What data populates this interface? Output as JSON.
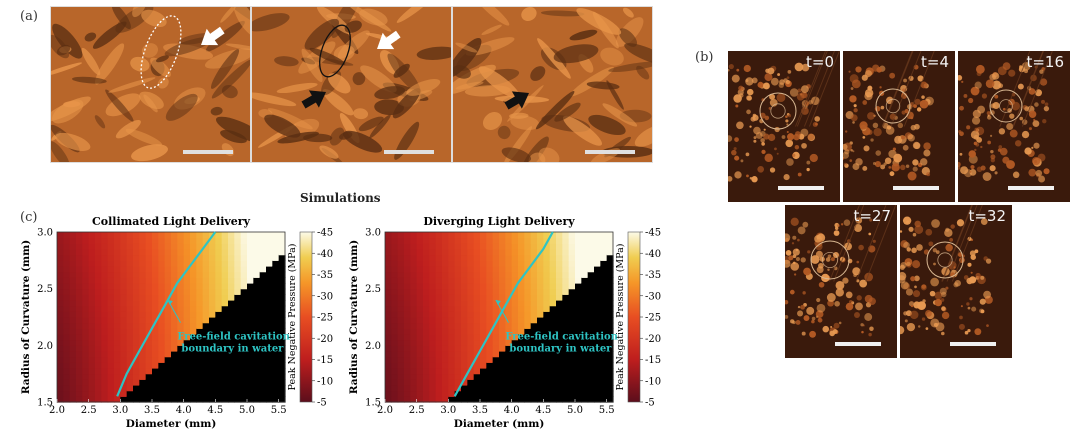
{
  "panel_labels": {
    "a": "(a)",
    "b": "(b)",
    "c": "(c)"
  },
  "section_title": "Simulations",
  "panel_b_times": [
    "t=0",
    "t=4",
    "t=16",
    "t=27",
    "t=32"
  ],
  "colors": {
    "tissue_dark": "#5a2e12",
    "tissue_mid": "#b8662a",
    "tissue_light": "#e8954a",
    "boundary": "#2ec4c4",
    "b_bg": "#3a1a0c"
  },
  "heatmap_common": {
    "ylabel": "Radius of Curvature (mm)",
    "xlabel": "Diameter (mm)",
    "xticks": [
      "2.0",
      "2.5",
      "3.0",
      "3.5",
      "4.0",
      "4.5",
      "5.0",
      "5.5"
    ],
    "yticks": [
      "1.5",
      "2.0",
      "2.5",
      "3.0"
    ],
    "colorbar_label": "Peak Negative Pressure (MPa)",
    "colorbar_ticks": [
      "-5",
      "-10",
      "-15",
      "-20",
      "-25",
      "-30",
      "-35",
      "-40",
      "-45"
    ],
    "annotation_line1": "Free-field cavitation",
    "annotation_line2": "boundary in water"
  },
  "chart_data": [
    {
      "type": "heatmap",
      "title": "Collimated Light Delivery",
      "xlabel": "Diameter (mm)",
      "ylabel": "Radius of Curvature (mm)",
      "xlim": [
        2.0,
        5.6
      ],
      "ylim": [
        1.5,
        3.0
      ],
      "colorbar": {
        "label": "Peak Negative Pressure (MPa)",
        "range": [
          -5,
          -45
        ]
      },
      "masked_region": "black where diameter > 2 x radius of curvature",
      "boundary": {
        "label": "Free-field cavitation boundary in water",
        "x": [
          2.95,
          3.1,
          3.3,
          3.5,
          3.7,
          3.9,
          4.1,
          4.3,
          4.5
        ],
        "y": [
          1.55,
          1.75,
          1.95,
          2.15,
          2.35,
          2.55,
          2.7,
          2.85,
          3.0
        ]
      }
    },
    {
      "type": "heatmap",
      "title": "Diverging Light Delivery",
      "xlabel": "Diameter (mm)",
      "ylabel": "Radius of Curvature (mm)",
      "xlim": [
        2.0,
        5.6
      ],
      "ylim": [
        1.5,
        3.0
      ],
      "colorbar": {
        "label": "Peak Negative Pressure (MPa)",
        "range": [
          -5,
          -45
        ]
      },
      "masked_region": "black where diameter > 2 x radius of curvature",
      "boundary": {
        "label": "Free-field cavitation boundary in water",
        "x": [
          3.1,
          3.3,
          3.5,
          3.7,
          3.9,
          4.1,
          4.3,
          4.5,
          4.65
        ],
        "y": [
          1.55,
          1.75,
          1.95,
          2.15,
          2.35,
          2.55,
          2.7,
          2.85,
          3.0
        ]
      }
    }
  ]
}
